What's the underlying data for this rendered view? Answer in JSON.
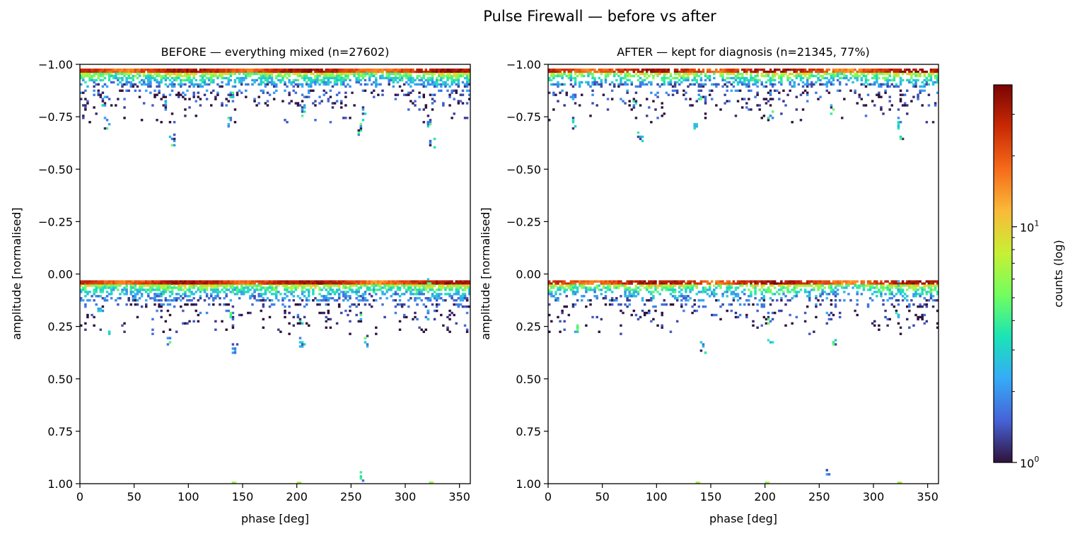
{
  "figure": {
    "title": "Pulse Firewall — before vs after"
  },
  "chart_data": [
    {
      "type": "heatmap",
      "title": "BEFORE — everything mixed (n=27602)",
      "xlabel": "phase [deg]",
      "ylabel": "amplitude [normalised]",
      "xlim": [
        0,
        360
      ],
      "ylim": [
        1.0,
        -1.0
      ],
      "y_axis_inverted": true,
      "xticks": [
        "0",
        "50",
        "100",
        "150",
        "200",
        "250",
        "300",
        "350"
      ],
      "xtick_values": [
        0,
        50,
        100,
        150,
        200,
        250,
        300,
        350
      ],
      "yticks": [
        "−1.00",
        "−0.75",
        "−0.50",
        "−0.25",
        "0.00",
        "0.25",
        "0.50",
        "0.75",
        "1.00"
      ],
      "ytick_values": [
        -1.0,
        -0.75,
        -0.5,
        -0.25,
        0.0,
        0.25,
        0.5,
        0.75,
        1.0
      ],
      "n": 27602,
      "bands": [
        {
          "amp_center": -0.98,
          "note": "dense band near −1.0"
        },
        {
          "amp_center": 0.03,
          "note": "dense band near 0.0"
        }
      ],
      "hot_phases": [
        100,
        210,
        340
      ],
      "clusters": [
        {
          "phase": 22,
          "amp": -0.82
        },
        {
          "phase": 25,
          "amp": -0.72
        },
        {
          "phase": 80,
          "amp": -0.8
        },
        {
          "phase": 85,
          "amp": -0.64
        },
        {
          "phase": 140,
          "amp": -0.85
        },
        {
          "phase": 138,
          "amp": -0.72
        },
        {
          "phase": 205,
          "amp": -0.78
        },
        {
          "phase": 262,
          "amp": -0.76
        },
        {
          "phase": 258,
          "amp": -0.69
        },
        {
          "phase": 323,
          "amp": -0.72
        },
        {
          "phase": 325,
          "amp": -0.62
        },
        {
          "phase": 322,
          "amp": 0.04
        },
        {
          "phase": 18,
          "amp": 0.16
        },
        {
          "phase": 26,
          "amp": 0.27
        },
        {
          "phase": 82,
          "amp": 0.31
        },
        {
          "phase": 140,
          "amp": 0.2
        },
        {
          "phase": 143,
          "amp": 0.36
        },
        {
          "phase": 203,
          "amp": 0.22
        },
        {
          "phase": 205,
          "amp": 0.33
        },
        {
          "phase": 258,
          "amp": 0.21
        },
        {
          "phase": 264,
          "amp": 0.32
        },
        {
          "phase": 322,
          "amp": 0.2
        },
        {
          "phase": 260,
          "amp": 0.96
        }
      ],
      "sparse_edge_points": [
        {
          "phase": 140,
          "amp": 1.0
        },
        {
          "phase": 200,
          "amp": 1.0
        },
        {
          "phase": 322,
          "amp": 1.0
        }
      ]
    },
    {
      "type": "heatmap",
      "title": "AFTER — kept for diagnosis (n=21345, 77%)",
      "xlabel": "phase [deg]",
      "ylabel": "amplitude [normalised]",
      "xlim": [
        0,
        360
      ],
      "ylim": [
        1.0,
        -1.0
      ],
      "y_axis_inverted": true,
      "xticks": [
        "0",
        "50",
        "100",
        "150",
        "200",
        "250",
        "300",
        "350"
      ],
      "xtick_values": [
        0,
        50,
        100,
        150,
        200,
        250,
        300,
        350
      ],
      "yticks": [
        "−1.00",
        "−0.75",
        "−0.50",
        "−0.25",
        "0.00",
        "0.25",
        "0.50",
        "0.75",
        "1.00"
      ],
      "ytick_values": [
        -1.0,
        -0.75,
        -0.5,
        -0.25,
        0.0,
        0.25,
        0.5,
        0.75,
        1.0
      ],
      "n": 21345,
      "kept_percent": 77,
      "bands": [
        {
          "amp_center": -0.98,
          "note": "dense band near −1.0"
        },
        {
          "amp_center": 0.03,
          "note": "dense band near 0.0"
        }
      ],
      "hot_phases": [
        100,
        210,
        340
      ],
      "clusters": [
        {
          "phase": 22,
          "amp": -0.82
        },
        {
          "phase": 24,
          "amp": -0.72
        },
        {
          "phase": 80,
          "amp": -0.81
        },
        {
          "phase": 85,
          "amp": -0.65
        },
        {
          "phase": 140,
          "amp": -0.85
        },
        {
          "phase": 136,
          "amp": -0.72
        },
        {
          "phase": 205,
          "amp": -0.76
        },
        {
          "phase": 262,
          "amp": -0.78
        },
        {
          "phase": 323,
          "amp": -0.72
        },
        {
          "phase": 325,
          "amp": -0.64
        },
        {
          "phase": 322,
          "amp": 0.05
        },
        {
          "phase": 26,
          "amp": 0.27
        },
        {
          "phase": 143,
          "amp": 0.35
        },
        {
          "phase": 203,
          "amp": 0.22
        },
        {
          "phase": 205,
          "amp": 0.33
        },
        {
          "phase": 258,
          "amp": 0.21
        },
        {
          "phase": 264,
          "amp": 0.32
        },
        {
          "phase": 322,
          "amp": 0.2
        },
        {
          "phase": 258,
          "amp": 0.94
        }
      ],
      "sparse_edge_points": [
        {
          "phase": 137,
          "amp": 1.0
        },
        {
          "phase": 200,
          "amp": 1.0
        },
        {
          "phase": 322,
          "amp": 1.0
        }
      ]
    }
  ],
  "colorbar": {
    "label": "counts (log)",
    "scale": "log",
    "colormap": "turbo",
    "range": [
      1,
      40
    ],
    "tick_values": [
      1,
      10
    ],
    "ticks": [
      {
        "base": "10",
        "exp": "0"
      },
      {
        "base": "10",
        "exp": "1"
      }
    ],
    "colors": [
      "#30123b",
      "#4662d7",
      "#35abf8",
      "#1ae4b6",
      "#72fe5e",
      "#c8ef34",
      "#faba39",
      "#f66b19",
      "#ca2a04",
      "#7a0403"
    ]
  }
}
